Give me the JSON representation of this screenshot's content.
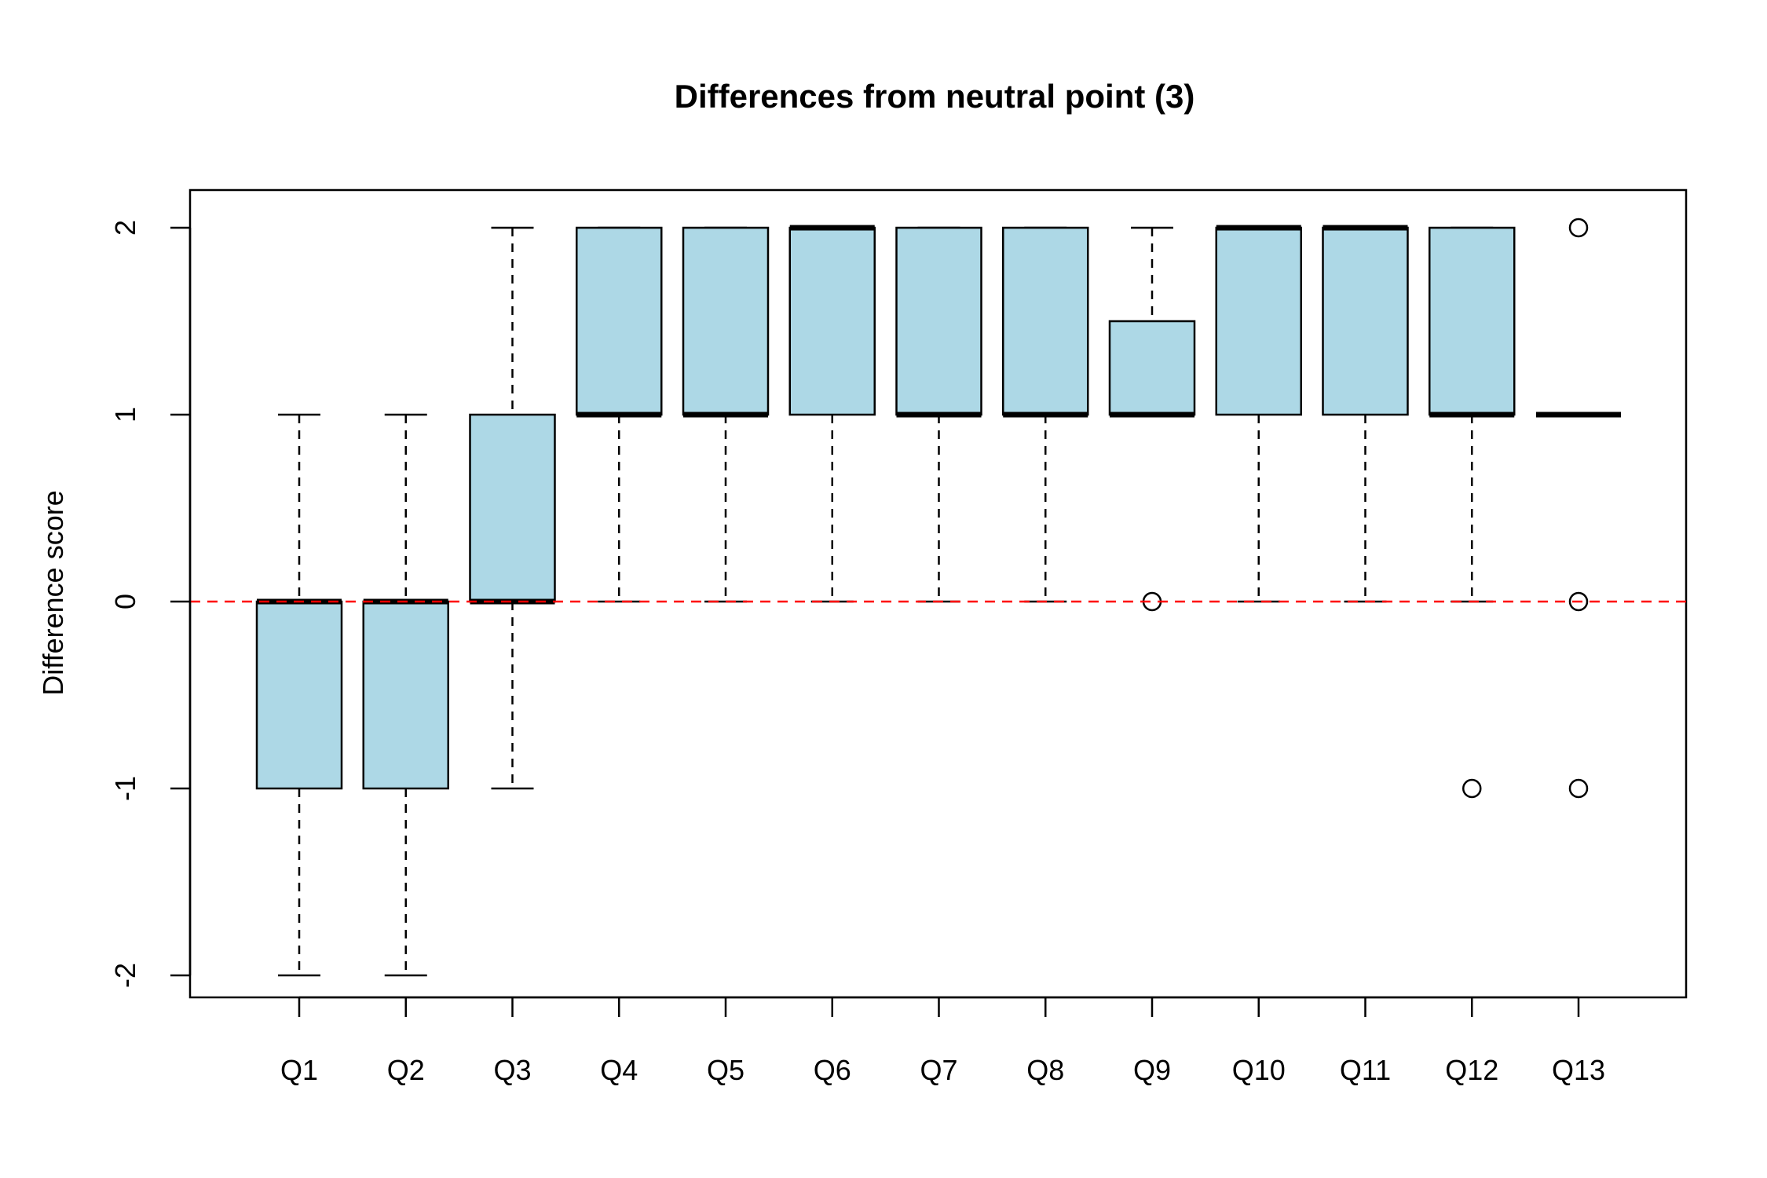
{
  "chart_data": {
    "type": "boxplot",
    "title": "Differences from neutral point (3)",
    "xlabel": "",
    "ylabel": "Difference score",
    "ylim": [
      -2.15,
      2.15
    ],
    "y_ticks": [
      -2,
      -1,
      0,
      1,
      2
    ],
    "reference_line": {
      "y": 0,
      "color": "#ff0000",
      "style": "dashed"
    },
    "box_color": "#add8e6",
    "grid": false,
    "categories": [
      "Q1",
      "Q2",
      "Q3",
      "Q4",
      "Q5",
      "Q6",
      "Q7",
      "Q8",
      "Q9",
      "Q10",
      "Q11",
      "Q12",
      "Q13"
    ],
    "boxes": [
      {
        "label": "Q1",
        "whisker_low": -2,
        "q1": -1,
        "median": 0,
        "q3": 0,
        "whisker_high": 1,
        "outliers": []
      },
      {
        "label": "Q2",
        "whisker_low": -2,
        "q1": -1,
        "median": 0,
        "q3": 0,
        "whisker_high": 1,
        "outliers": []
      },
      {
        "label": "Q3",
        "whisker_low": -1,
        "q1": 0,
        "median": 0,
        "q3": 1,
        "whisker_high": 2,
        "outliers": []
      },
      {
        "label": "Q4",
        "whisker_low": 0,
        "q1": 1,
        "median": 1,
        "q3": 2,
        "whisker_high": 2,
        "outliers": []
      },
      {
        "label": "Q5",
        "whisker_low": 0,
        "q1": 1,
        "median": 1,
        "q3": 2,
        "whisker_high": 2,
        "outliers": []
      },
      {
        "label": "Q6",
        "whisker_low": 0,
        "q1": 1,
        "median": 2,
        "q3": 2,
        "whisker_high": 2,
        "outliers": []
      },
      {
        "label": "Q7",
        "whisker_low": 0,
        "q1": 1,
        "median": 1,
        "q3": 2,
        "whisker_high": 2,
        "outliers": []
      },
      {
        "label": "Q8",
        "whisker_low": 0,
        "q1": 1,
        "median": 1,
        "q3": 2,
        "whisker_high": 2,
        "outliers": []
      },
      {
        "label": "Q9",
        "whisker_low": 1,
        "q1": 1,
        "median": 1,
        "q3": 1.5,
        "whisker_high": 2,
        "outliers": [
          0
        ]
      },
      {
        "label": "Q10",
        "whisker_low": 0,
        "q1": 1,
        "median": 2,
        "q3": 2,
        "whisker_high": 2,
        "outliers": []
      },
      {
        "label": "Q11",
        "whisker_low": 0,
        "q1": 1,
        "median": 2,
        "q3": 2,
        "whisker_high": 2,
        "outliers": []
      },
      {
        "label": "Q12",
        "whisker_low": 0,
        "q1": 1,
        "median": 1,
        "q3": 2,
        "whisker_high": 2,
        "outliers": [
          -1
        ]
      },
      {
        "label": "Q13",
        "whisker_low": 1,
        "q1": 1,
        "median": 1,
        "q3": 1,
        "whisker_high": 1,
        "outliers": [
          2,
          0,
          -1
        ]
      }
    ]
  }
}
